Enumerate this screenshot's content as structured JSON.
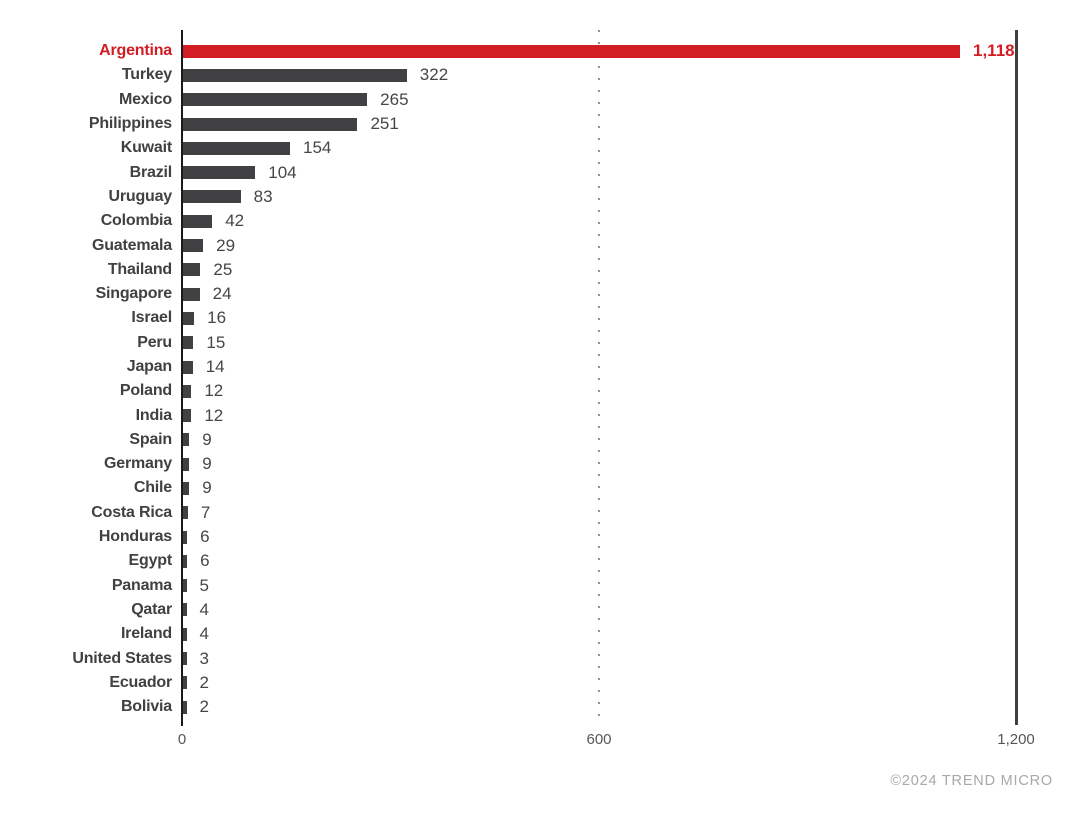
{
  "chart_data": {
    "type": "bar",
    "orientation": "horizontal",
    "title": "",
    "xlabel": "",
    "ylabel": "",
    "xlim": [
      0,
      1200
    ],
    "grid": "vertical-only",
    "legend": "none",
    "categories": [
      "Argentina",
      "Turkey",
      "Mexico",
      "Philippines",
      "Kuwait",
      "Brazil",
      "Uruguay",
      "Colombia",
      "Guatemala",
      "Thailand",
      "Singapore",
      "Israel",
      "Peru",
      "Japan",
      "Poland",
      "India",
      "Spain",
      "Germany",
      "Chile",
      "Costa Rica",
      "Honduras",
      "Egypt",
      "Panama",
      "Qatar",
      "Ireland",
      "United States",
      "Ecuador",
      "Bolivia"
    ],
    "values": [
      1118,
      322,
      265,
      251,
      154,
      104,
      83,
      42,
      29,
      25,
      24,
      16,
      15,
      14,
      12,
      12,
      9,
      9,
      9,
      7,
      6,
      6,
      5,
      4,
      4,
      3,
      2,
      2
    ],
    "value_labels": [
      "1,118",
      "322",
      "265",
      "251",
      "154",
      "104",
      "83",
      "42",
      "29",
      "25",
      "24",
      "16",
      "15",
      "14",
      "12",
      "12",
      "9",
      "9",
      "9",
      "7",
      "6",
      "6",
      "5",
      "4",
      "4",
      "3",
      "2",
      "2"
    ],
    "highlight_index": 0,
    "x_ticks": [
      {
        "value": 0,
        "label": "0",
        "line": "solid-axis"
      },
      {
        "value": 600,
        "label": "600",
        "line": "dotted"
      },
      {
        "value": 1200,
        "label": "1,200",
        "line": "solid-end"
      }
    ],
    "colors": {
      "bar": "#414042",
      "highlight": "#d21d24",
      "axis_line": "#1a1a1a",
      "gridline_dotted": "#8f9194",
      "end_line": "#3f3f41",
      "tick_label": "#55565a",
      "footer_text": "#a6a8ab"
    }
  },
  "footer": {
    "copyright": "©2024 TREND MICRO"
  }
}
